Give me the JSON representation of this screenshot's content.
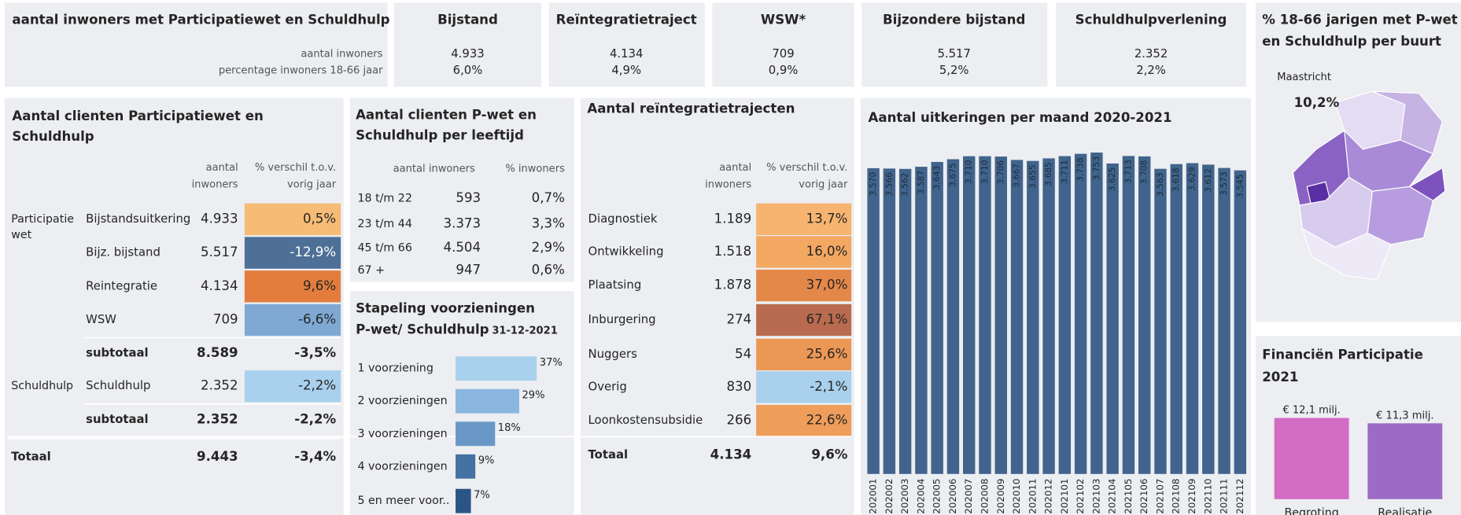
{
  "summary": {
    "title": "aantal inwoners met Participatiewet en Schuldhulp",
    "row_labels": [
      "aantal inwoners",
      "percentage inwoners 18-66 jaar"
    ],
    "kpis": [
      {
        "title": "Bijstand",
        "count": "4.933",
        "pct": "6,0%"
      },
      {
        "title": "Reïntegratietraject",
        "count": "4.134",
        "pct": "4,9%"
      },
      {
        "title": "WSW*",
        "count": "709",
        "pct": "0,9%"
      },
      {
        "title": "Bijzondere bijstand",
        "count": "5.517",
        "pct": "5,2%"
      },
      {
        "title": "Schuldhulpverlening",
        "count": "2.352",
        "pct": "2,2%"
      }
    ]
  },
  "map": {
    "title": [
      "% 18-66 jarigen met P-wet",
      "en Schuldhulp per buurt"
    ],
    "place": "Maastricht",
    "value": "10,2%"
  },
  "clients": {
    "title": [
      "Aantal clienten Participatiewet en",
      "Schuldhulp"
    ],
    "headers": [
      [
        "aantal",
        "inwoners"
      ],
      [
        "% verschil t.o.v.",
        "vorig jaar"
      ]
    ],
    "rows": [
      {
        "group": [
          "Participatie",
          "wet"
        ],
        "label": "Bijstandsuitkering",
        "count": "4.933",
        "change": "0,5%",
        "color": "#f6bb75"
      },
      {
        "label": "Bijz. bijstand",
        "count": "5.517",
        "change": "-12,9%",
        "color": "#4f7096"
      },
      {
        "label": "Reintegratie",
        "count": "4.134",
        "change": "9,6%",
        "color": "#e27d3d"
      },
      {
        "label": "WSW",
        "count": "709",
        "change": "-6,6%",
        "color": "#7fa9d3"
      },
      {
        "label": "subtotaal",
        "count": "8.589",
        "change": "-3,5%"
      },
      {
        "group": [
          "Schuldhulp"
        ],
        "label": "Schuldhulp",
        "count": "2.352",
        "change": "-2,2%",
        "color": "#a9d0ec"
      },
      {
        "label": "subtotaal",
        "count": "2.352",
        "change": "-2,2%"
      }
    ],
    "total": {
      "label": "Totaal",
      "count": "9.443",
      "change": "-3,4%"
    }
  },
  "ages": {
    "title": [
      "Aantal clienten P-wet en",
      "Schuldhulp per leeftijd"
    ],
    "headers": [
      "aantal inwoners",
      "% inwoners"
    ],
    "rows": [
      {
        "label": "18 t/m 22",
        "count": "593",
        "pct": "0,7%"
      },
      {
        "label": "23 t/m 44",
        "count": "3.373",
        "pct": "3,3%"
      },
      {
        "label": "45 t/m 66",
        "count": "4.504",
        "pct": "2,9%"
      },
      {
        "label": "67 +",
        "count": "947",
        "pct": "0,6%"
      }
    ]
  },
  "reintegration": {
    "title": "Aantal reïntegratietrajecten",
    "headers": [
      [
        "aantal",
        "inwoners"
      ],
      [
        "% verschil t.o.v.",
        "vorig jaar"
      ]
    ],
    "rows": [
      {
        "label": "Diagnostiek",
        "count": "1.189",
        "change": "13,7%",
        "color": "#f6b470"
      },
      {
        "label": "Ontwikkeling",
        "count": "1.518",
        "change": "16,0%",
        "color": "#f3a862"
      },
      {
        "label": "Plaatsing",
        "count": "1.878",
        "change": "37,0%",
        "color": "#e4884a"
      },
      {
        "label": "Inburgering",
        "count": "274",
        "change": "67,1%",
        "color": "#b96b4f"
      },
      {
        "label": "Nuggers",
        "count": "54",
        "change": "25,6%",
        "color": "#ec9855"
      },
      {
        "label": "Overig",
        "count": "830",
        "change": "-2,1%",
        "color": "#a9d0ec"
      },
      {
        "label": "Loonkostensubsidie",
        "count": "266",
        "change": "22,6%",
        "color": "#ef9d5a"
      }
    ],
    "total": {
      "label": "Totaal",
      "count": "4.134",
      "change": "9,6%"
    }
  },
  "chart_data": [
    {
      "type": "bar",
      "orientation": "horizontal",
      "title": [
        "Stapeling voorzieningen",
        "P-wet/ Schuldhulp"
      ],
      "subtitle": "31-12-2021",
      "categories": [
        "1 voorziening",
        "2 voorzieningen",
        "3 voorzieningen",
        "4 voorzieningen",
        "5 en meer voor.."
      ],
      "values": [
        37,
        29,
        18,
        9,
        7
      ],
      "value_labels": [
        "37%",
        "29%",
        "18%",
        "9%",
        "7%"
      ],
      "colors": [
        "#a9d0ec",
        "#8ab6df",
        "#6a98c6",
        "#4571a3",
        "#2c5487"
      ],
      "xlim": [
        0,
        40
      ]
    },
    {
      "type": "bar",
      "orientation": "vertical",
      "title": "Aantal uitkeringen per maand 2020-2021",
      "categories": [
        "202001",
        "202002",
        "202003",
        "202004",
        "202005",
        "202006",
        "202007",
        "202008",
        "202009",
        "202010",
        "202011",
        "202012",
        "202101",
        "202102",
        "202103",
        "202104",
        "202105",
        "202106",
        "202107",
        "202108",
        "202109",
        "202110",
        "202111",
        "202112"
      ],
      "values": [
        3570,
        3566,
        3562,
        3587,
        3643,
        3675,
        3710,
        3710,
        3706,
        3667,
        3655,
        3685,
        3711,
        3738,
        3753,
        3625,
        3713,
        3708,
        3563,
        3618,
        3629,
        3612,
        3573,
        3545
      ],
      "value_labels": [
        "3.570",
        "3.566",
        "3.562",
        "3.587",
        "3.643",
        "3.675",
        "3.710",
        "3.710",
        "3.706",
        "3.667",
        "3.655",
        "3.685",
        "3.711",
        "3.738",
        "3.753",
        "3.625",
        "3.713",
        "3.708",
        "3.563",
        "3.618",
        "3.629",
        "3.612",
        "3.573",
        "3.545"
      ],
      "color": "#41648c",
      "ylim": [
        0,
        3900
      ]
    },
    {
      "type": "bar",
      "orientation": "vertical",
      "title": [
        "Financiën Participatie",
        "2021"
      ],
      "categories": [
        "Begroting",
        "Realisatie"
      ],
      "values": [
        12.1,
        11.3
      ],
      "value_labels": [
        "€ 12,1 milj.",
        "€ 11,3 milj."
      ],
      "colors": [
        "#d36cc5",
        "#9c6bc5"
      ],
      "ylim": [
        0,
        13
      ]
    }
  ]
}
